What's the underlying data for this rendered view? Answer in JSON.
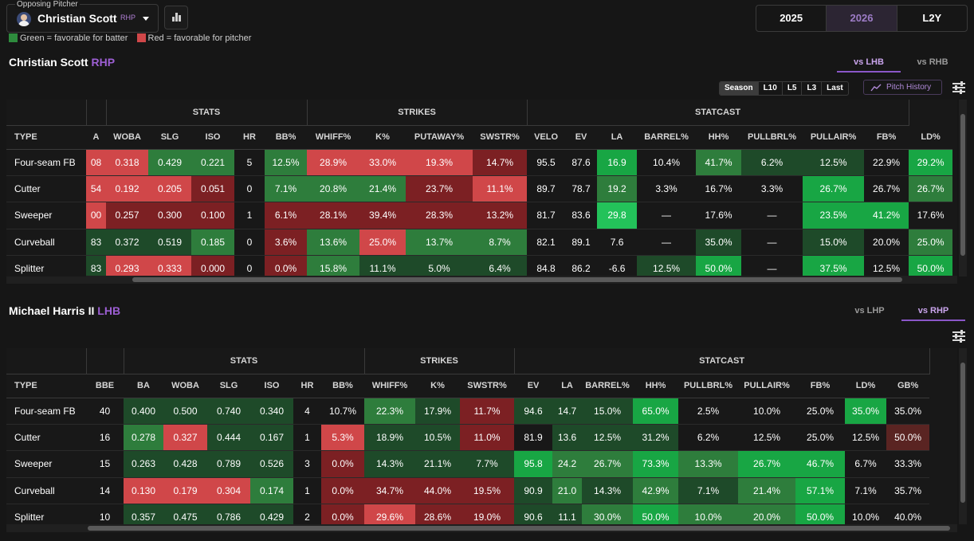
{
  "header": {
    "select_label": "Opposing Pitcher",
    "pitcher_name": "Christian Scott",
    "pitcher_hand": "RHP",
    "legend_green": "Green = favorable for batter",
    "legend_red": "Red = favorable for pitcher",
    "years": [
      "2025",
      "2026",
      "L2Y"
    ],
    "active_year": "2026"
  },
  "colors": {
    "bg": "#161616",
    "accent": "#9d5fd4",
    "green_dark": "#1d4d2a",
    "green_mid": "#2e7d3c",
    "green_bright": "#17a845",
    "red_dark": "#7a1f22",
    "red_mid": "#a62c2f",
    "red_light": "#d04749",
    "neutral": "#1f1f1f"
  },
  "pitcher_section": {
    "name": "Christian Scott",
    "hand": "RHP",
    "tabs": [
      "vs LHB",
      "vs RHB"
    ],
    "active_tab": "vs LHB",
    "range_buttons": [
      "Season",
      "L10",
      "L5",
      "L3",
      "Last"
    ],
    "active_range": "Season",
    "pitch_history_label": "Pitch History",
    "groups": [
      "STATS",
      "STRIKES",
      "STATCAST"
    ],
    "columns": [
      "TYPE",
      "A",
      "WOBA",
      "SLG",
      "ISO",
      "HR",
      "BB%",
      "WHIFF%",
      "K%",
      "PUTAWAY%",
      "SWSTR%",
      "VELO",
      "EV",
      "LA",
      "BARREL%",
      "HH%",
      "PULLBRL%",
      "PULLAIR%",
      "FB%",
      "LD%"
    ],
    "rows": [
      {
        "type": "Four-seam FB",
        "cells": [
          "08",
          "0.318",
          "0.429",
          "0.221",
          "5",
          "12.5%",
          "28.9%",
          "33.0%",
          "19.3%",
          "14.7%",
          "95.5",
          "87.6",
          "16.9",
          "10.4%",
          "41.7%",
          "6.2%",
          "12.5%",
          "22.9%",
          "29.2%"
        ],
        "shade": [
          "r2",
          "r2",
          "g1",
          "g1",
          "n",
          "g1",
          "r2",
          "r2",
          "r2",
          "r1",
          "n",
          "n",
          "g2",
          "n",
          "g1",
          "g0",
          "g0",
          "n",
          "g2"
        ]
      },
      {
        "type": "Cutter",
        "cells": [
          "54",
          "0.192",
          "0.205",
          "0.051",
          "0",
          "7.1%",
          "20.8%",
          "21.4%",
          "23.7%",
          "11.1%",
          "89.7",
          "78.7",
          "19.2",
          "3.3%",
          "16.7%",
          "3.3%",
          "26.7%",
          "26.7%",
          "26.7%"
        ],
        "shade": [
          "r2",
          "r2",
          "r2",
          "r1",
          "n",
          "g1",
          "g1",
          "g1",
          "r1",
          "r2",
          "n",
          "n",
          "g1",
          "n",
          "n",
          "n",
          "g2",
          "n",
          "g1"
        ]
      },
      {
        "type": "Sweeper",
        "cells": [
          "00",
          "0.257",
          "0.300",
          "0.100",
          "1",
          "6.1%",
          "28.1%",
          "39.4%",
          "28.3%",
          "13.2%",
          "81.7",
          "83.6",
          "29.8",
          "—",
          "17.6%",
          "—",
          "23.5%",
          "41.2%",
          "17.6%"
        ],
        "shade": [
          "r2",
          "r1",
          "r1",
          "r1",
          "n",
          "r1",
          "r1",
          "r1",
          "r1",
          "r1",
          "n",
          "n",
          "g3",
          "n",
          "n",
          "n",
          "g2",
          "g2",
          "n"
        ]
      },
      {
        "type": "Curveball",
        "cells": [
          "83",
          "0.372",
          "0.519",
          "0.185",
          "0",
          "3.6%",
          "13.6%",
          "25.0%",
          "13.7%",
          "8.7%",
          "82.1",
          "89.1",
          "7.6",
          "—",
          "35.0%",
          "—",
          "15.0%",
          "20.0%",
          "25.0%"
        ],
        "shade": [
          "g0",
          "g0",
          "g0",
          "g1",
          "n",
          "r1",
          "g1",
          "r2",
          "g1",
          "g1",
          "n",
          "n",
          "n",
          "n",
          "g0",
          "n",
          "g0",
          "n",
          "g1"
        ]
      },
      {
        "type": "Splitter",
        "cells": [
          "83",
          "0.293",
          "0.333",
          "0.000",
          "0",
          "0.0%",
          "15.8%",
          "11.1%",
          "5.0%",
          "6.4%",
          "84.8",
          "86.2",
          "-6.6",
          "12.5%",
          "50.0%",
          "—",
          "37.5%",
          "12.5%",
          "50.0%"
        ],
        "shade": [
          "g0",
          "r2",
          "r2",
          "r1",
          "n",
          "r1",
          "g1",
          "g0",
          "g0",
          "g0",
          "n",
          "n",
          "n",
          "g0",
          "g2",
          "n",
          "g2",
          "n",
          "g2"
        ]
      }
    ]
  },
  "batter_section": {
    "name": "Michael Harris II",
    "hand": "LHB",
    "tabs": [
      "vs LHP",
      "vs RHP"
    ],
    "active_tab": "vs RHP",
    "groups": [
      "STATS",
      "STRIKES",
      "STATCAST"
    ],
    "columns": [
      "TYPE",
      "BBE",
      "BA",
      "WOBA",
      "SLG",
      "ISO",
      "HR",
      "BB%",
      "WHIFF%",
      "K%",
      "SWSTR%",
      "EV",
      "LA",
      "BARREL%",
      "HH%",
      "PULLBRL%",
      "PULLAIR%",
      "FB%",
      "LD%",
      "GB%"
    ],
    "rows": [
      {
        "type": "Four-seam FB",
        "cells": [
          "40",
          "0.400",
          "0.500",
          "0.740",
          "0.340",
          "4",
          "10.7%",
          "22.3%",
          "17.9%",
          "11.7%",
          "94.6",
          "14.7",
          "15.0%",
          "65.0%",
          "2.5%",
          "10.0%",
          "25.0%",
          "35.0%",
          "35.0%"
        ],
        "shade": [
          "n",
          "g0",
          "g0",
          "g0",
          "g0",
          "n",
          "n",
          "g1",
          "g0",
          "r1",
          "g0",
          "g0",
          "g0",
          "g2",
          "n",
          "n",
          "n",
          "g2",
          "n"
        ]
      },
      {
        "type": "Cutter",
        "cells": [
          "16",
          "0.278",
          "0.327",
          "0.444",
          "0.167",
          "1",
          "5.3%",
          "18.9%",
          "10.5%",
          "11.0%",
          "81.9",
          "13.6",
          "12.5%",
          "31.2%",
          "6.2%",
          "12.5%",
          "25.0%",
          "12.5%",
          "50.0%"
        ],
        "shade": [
          "n",
          "g1",
          "r2",
          "g0",
          "g0",
          "n",
          "r2",
          "g0",
          "g0",
          "r1",
          "n",
          "g0",
          "g0",
          "g0",
          "n",
          "n",
          "n",
          "n",
          "r0"
        ]
      },
      {
        "type": "Sweeper",
        "cells": [
          "15",
          "0.263",
          "0.428",
          "0.789",
          "0.526",
          "3",
          "0.0%",
          "14.3%",
          "21.1%",
          "7.7%",
          "95.8",
          "24.2",
          "26.7%",
          "73.3%",
          "13.3%",
          "26.7%",
          "46.7%",
          "6.7%",
          "33.3%"
        ],
        "shade": [
          "n",
          "g0",
          "g0",
          "g0",
          "g0",
          "n",
          "r1",
          "g0",
          "g0",
          "g0",
          "g2",
          "g1",
          "g1",
          "g2",
          "g1",
          "g2",
          "g2",
          "n",
          "n"
        ]
      },
      {
        "type": "Curveball",
        "cells": [
          "14",
          "0.130",
          "0.179",
          "0.304",
          "0.174",
          "1",
          "0.0%",
          "34.7%",
          "44.0%",
          "19.5%",
          "90.9",
          "21.0",
          "14.3%",
          "42.9%",
          "7.1%",
          "21.4%",
          "57.1%",
          "7.1%",
          "35.7%"
        ],
        "shade": [
          "n",
          "r2",
          "r2",
          "r2",
          "g1",
          "n",
          "r1",
          "r1",
          "r1",
          "r1",
          "g0",
          "g1",
          "g0",
          "g1",
          "g0",
          "g1",
          "g2",
          "n",
          "n"
        ]
      },
      {
        "type": "Splitter",
        "cells": [
          "10",
          "0.357",
          "0.475",
          "0.786",
          "0.429",
          "2",
          "0.0%",
          "29.6%",
          "28.6%",
          "19.0%",
          "90.6",
          "11.1",
          "30.0%",
          "50.0%",
          "10.0%",
          "20.0%",
          "50.0%",
          "10.0%",
          "40.0%"
        ],
        "shade": [
          "n",
          "g0",
          "g0",
          "g0",
          "g0",
          "n",
          "r1",
          "r2",
          "r1",
          "r1",
          "g0",
          "g0",
          "g1",
          "g2",
          "g1",
          "g1",
          "g2",
          "n",
          "n"
        ]
      }
    ]
  }
}
